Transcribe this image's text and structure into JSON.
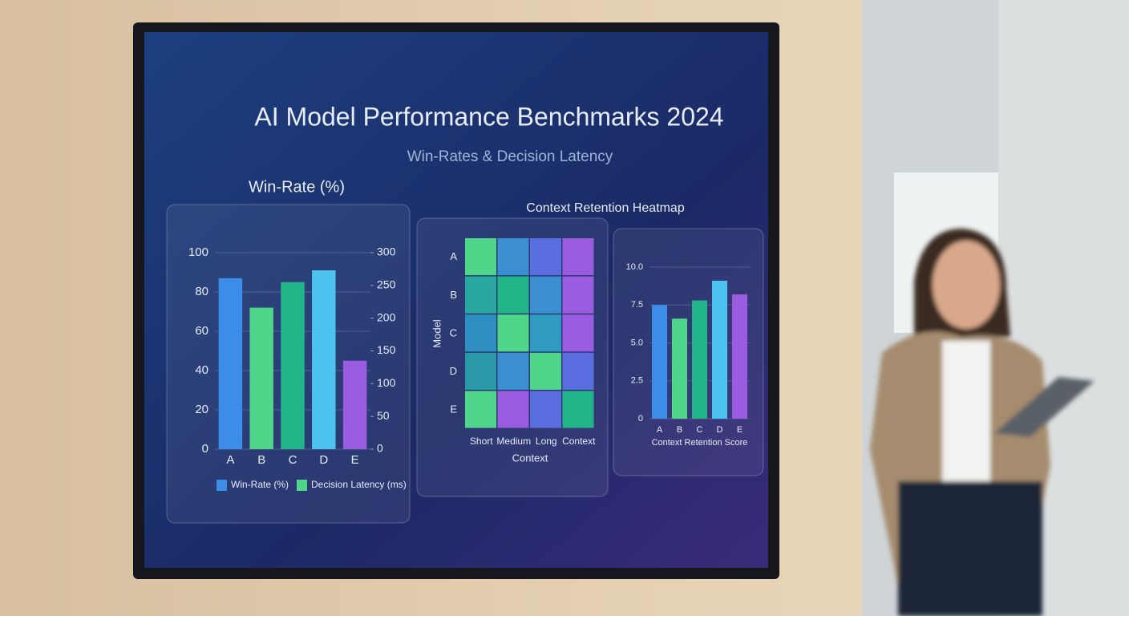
{
  "header": {
    "title": "AI Model Performance Benchmarks 2024",
    "subtitle": "Win-Rates & Decision Latency"
  },
  "chart_data": [
    {
      "type": "bar",
      "title": "Win-Rate (%)",
      "categories": [
        "A",
        "B",
        "C",
        "D",
        "E"
      ],
      "values": [
        87,
        72,
        85,
        91,
        45
      ],
      "colors": [
        "#3b8de8",
        "#4fd68a",
        "#22b58a",
        "#4cc3ee",
        "#9a5ce0"
      ],
      "ylim": [
        0,
        100
      ],
      "yticks": [
        0,
        20,
        40,
        60,
        80,
        100
      ],
      "y2lim": [
        0,
        300
      ],
      "y2ticks": [
        0,
        50,
        100,
        150,
        200,
        250,
        300
      ],
      "grid": true,
      "legend": [
        {
          "name": "Win-Rate (%)",
          "color": "#3b8de8"
        },
        {
          "name": "Decision Latency (ms)",
          "color": "#4fd68a"
        }
      ]
    },
    {
      "type": "heatmap",
      "title": "Context Retention Heatmap",
      "xlabel": "Context",
      "ylabel": "Model",
      "x": [
        "Short",
        "Medium",
        "Long",
        "Context"
      ],
      "y": [
        "A",
        "B",
        "C",
        "D",
        "E"
      ],
      "colors": [
        [
          "#4fd68a",
          "#3b8fd0",
          "#5b6ee0",
          "#9a5ce0"
        ],
        [
          "#2aa6a0",
          "#22b58a",
          "#3b8fd0",
          "#9a5ce0"
        ],
        [
          "#2f8fc0",
          "#4fd68a",
          "#2f9bc0",
          "#9a5ce0"
        ],
        [
          "#2a9aa8",
          "#3b8fd0",
          "#4fd68a",
          "#5b6ee0"
        ],
        [
          "#4fd68a",
          "#9a5ce0",
          "#5b6ee0",
          "#22b58a"
        ]
      ]
    },
    {
      "type": "bar",
      "xlabel": "Context Retention Score",
      "categories": [
        "A",
        "B",
        "C",
        "D",
        "E"
      ],
      "values": [
        7.5,
        6.6,
        7.8,
        9.1,
        8.2
      ],
      "colors": [
        "#3b8de8",
        "#4fd68a",
        "#22b58a",
        "#4cc3ee",
        "#9a5ce0"
      ],
      "ylim": [
        0,
        10
      ],
      "yticks": [
        0,
        2.5,
        {
          "value": 5,
          "label": "5.0"
        },
        7.5,
        {
          "value": 10,
          "label": "10.0"
        }
      ],
      "grid": true
    }
  ]
}
